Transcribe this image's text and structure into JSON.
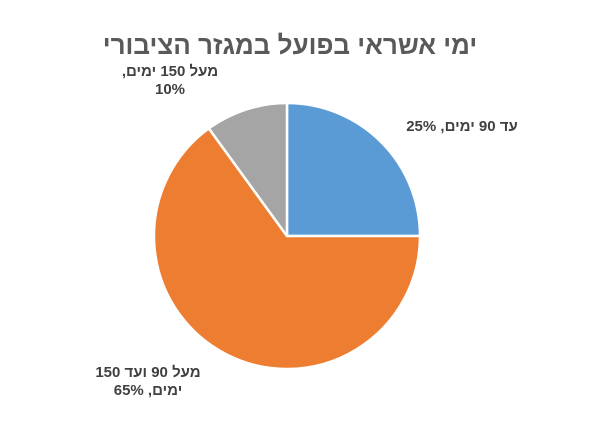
{
  "chart_data": {
    "type": "pie",
    "title": "ימי אשראי בפועל במגזר הציבורי",
    "slices": [
      {
        "label_lines": [
          "עד 90 ימים, 25%"
        ],
        "value": 25,
        "color": "#5B9BD5"
      },
      {
        "label_lines": [
          "מעל 90 ועד 150",
          "ימים, 65%"
        ],
        "value": 65,
        "color": "#ED7D31"
      },
      {
        "label_lines": [
          "מעל 150 ימים,",
          "10%"
        ],
        "value": 10,
        "color": "#A5A5A5"
      }
    ],
    "start_angle_deg": 0,
    "direction": "clockwise",
    "legend": "none",
    "slice_border_color": "#ffffff"
  }
}
